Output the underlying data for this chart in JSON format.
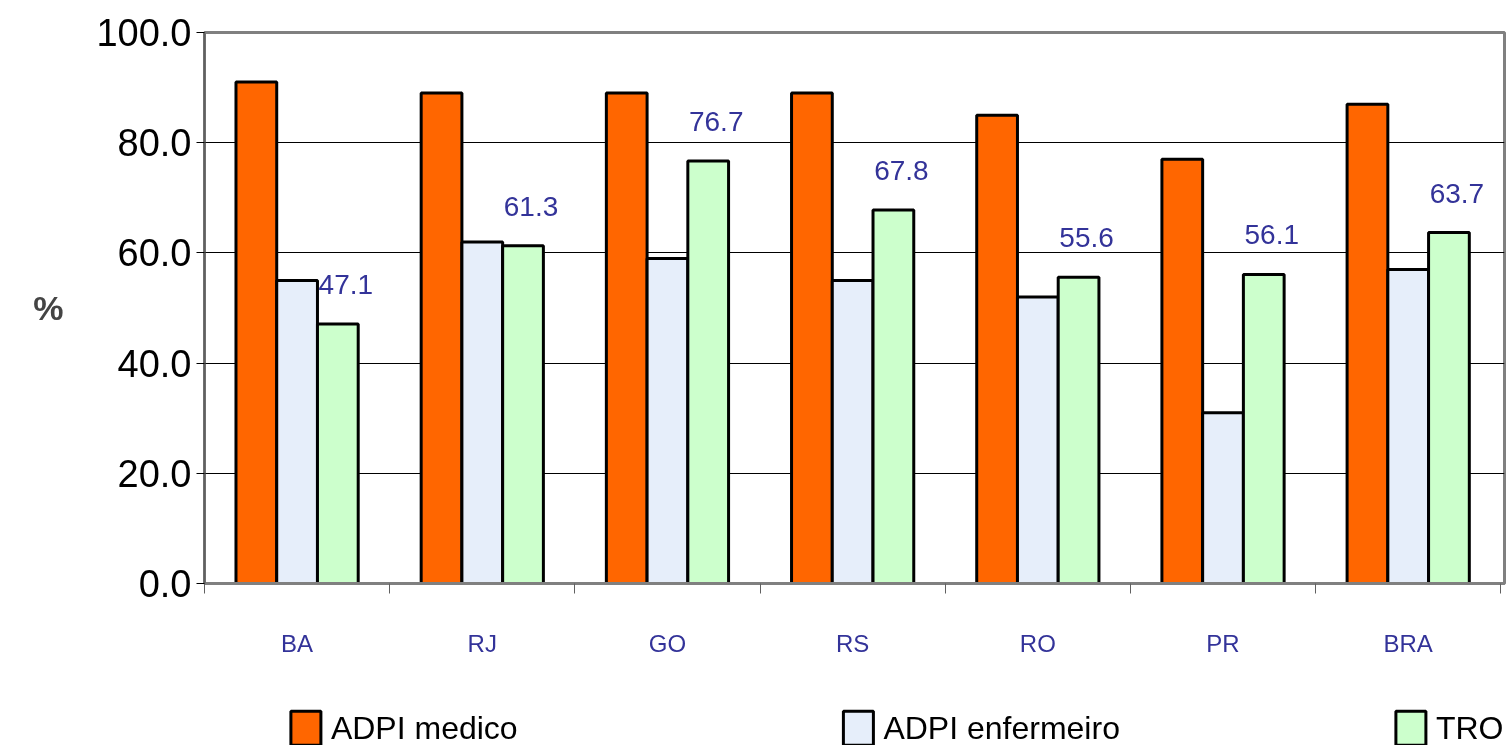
{
  "chart_data": {
    "type": "bar",
    "categories": [
      "BA",
      "RJ",
      "GO",
      "RS",
      "RO",
      "PR",
      "BRA"
    ],
    "ylabel": "%",
    "ylim": [
      0,
      100
    ],
    "yticks": [
      {
        "value": 0,
        "label": "0.0"
      },
      {
        "value": 20,
        "label": "20.0"
      },
      {
        "value": 40,
        "label": "40.0"
      },
      {
        "value": 60,
        "label": "60.0"
      },
      {
        "value": 80,
        "label": "80.0"
      },
      {
        "value": 100,
        "label": "100.0"
      }
    ],
    "grid": "y",
    "legend": "bottom",
    "series": [
      {
        "name": "ADPI medico",
        "color": "#ff6600",
        "values": [
          91,
          89,
          89,
          89,
          85,
          77,
          87
        ]
      },
      {
        "name": "ADPI enfermeiro",
        "color": "#e6eefa",
        "values": [
          55,
          62,
          59,
          55,
          52,
          31,
          57
        ]
      },
      {
        "name": "TRO",
        "color": "#ccffcc",
        "values": [
          47.1,
          61.3,
          76.7,
          67.8,
          55.6,
          56.1,
          63.7
        ],
        "value_labels": [
          "47.1",
          "61.3",
          "76.7",
          "67.8",
          "55.6",
          "56.1",
          "63.7"
        ]
      }
    ]
  }
}
